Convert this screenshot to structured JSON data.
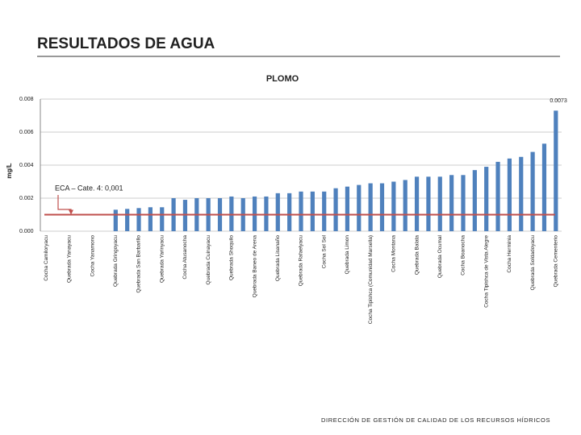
{
  "header": {
    "title": "RESULTADOS DE AGUA"
  },
  "footer": "DIRECCIÓN DE GESTIÓN DE CALIDAD DE LOS RECURSOS HÍDRICOS",
  "chart_data": {
    "type": "bar",
    "title": "PLOMO",
    "y_label": "mg/L",
    "color": "#4f81bd",
    "grid": true,
    "categories": [
      "Cocha Camiloryacu",
      null,
      "Quebrada Yanayacu",
      null,
      "Cocha Yanamono",
      null,
      "Quebrada Gringoyacu",
      null,
      "Quebrada San Barbarillo",
      null,
      "Quebrada Yarinyacu",
      null,
      "Cocha Atusanocha",
      null,
      "Quebrada Cuinayacu",
      null,
      "Quebrada Shoquilo",
      null,
      "Quebrada Baneo de Arena",
      null,
      "Quebrada Lisanaño",
      null,
      "Quebrada Rafaelyacu",
      null,
      "Cocha Sol Sol",
      null,
      "Quebrada Limon",
      null,
      "Cocha Tipishca (Comunidad Marsella)",
      null,
      "Cocha Montana",
      null,
      "Quebrada Balata",
      null,
      "Quebrada Ocumal",
      null,
      "Cocha Boanocha",
      null,
      "Cocha Tipishca de Vista Alegre",
      null,
      "Cocha Herminia",
      null,
      "Quebrada Soldadoyacu",
      null,
      "Quebrada Cementerio"
    ],
    "values": [
      0,
      0,
      0,
      0,
      0,
      0,
      0.0013,
      0.00135,
      0.0014,
      0.00145,
      0.00145,
      0.002,
      0.0019,
      0.002,
      0.002,
      0.002,
      0.0021,
      0.002,
      0.0021,
      0.0021,
      0.0023,
      0.0023,
      0.0024,
      0.0024,
      0.0024,
      0.0026,
      0.0027,
      0.0028,
      0.0029,
      0.0029,
      0.003,
      0.0031,
      0.0033,
      0.0033,
      0.0033,
      0.0034,
      0.0034,
      0.0037,
      0.0039,
      0.0042,
      0.0044,
      0.0045,
      0.0048,
      0.0053,
      0.0073
    ],
    "value_labels": [
      null,
      null,
      null,
      null,
      null,
      null,
      null,
      null,
      null,
      null,
      null,
      null,
      null,
      null,
      null,
      null,
      null,
      null,
      null,
      null,
      null,
      null,
      null,
      null,
      null,
      null,
      null,
      null,
      null,
      null,
      null,
      null,
      null,
      null,
      null,
      null,
      null,
      null,
      null,
      null,
      null,
      null,
      null,
      null,
      "0.0073"
    ],
    "ylim": [
      0,
      0.008
    ],
    "yticks": [
      {
        "value": 0,
        "label": "0.000"
      },
      {
        "value": 0.002,
        "label": "0.002"
      },
      {
        "value": 0.004,
        "label": "0.004"
      },
      {
        "value": 0.006,
        "label": "0.006"
      },
      {
        "value": 0.008,
        "label": "0.008"
      }
    ],
    "reference_line": {
      "value": 0.001,
      "label": "ECA – Cate. 4: 0,001",
      "color": "#c0504d"
    }
  }
}
